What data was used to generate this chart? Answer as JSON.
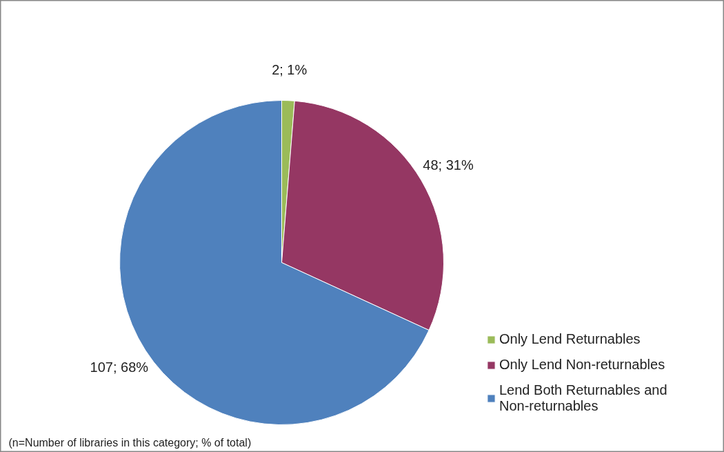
{
  "chart_data": {
    "type": "pie",
    "categories": [
      "Only Lend Returnables",
      "Only Lend Non-returnables",
      "Lend Both Returnables and Non-returnables"
    ],
    "values": [
      2,
      48,
      107
    ],
    "colors": [
      "#9bbb59",
      "#953763",
      "#4f81bd"
    ],
    "value_labels": [
      "2; 1%",
      "48; 31%",
      "107; 68%"
    ],
    "legend": "right",
    "annotations": [
      "(n=Number of libraries in this category; % of total)"
    ]
  }
}
